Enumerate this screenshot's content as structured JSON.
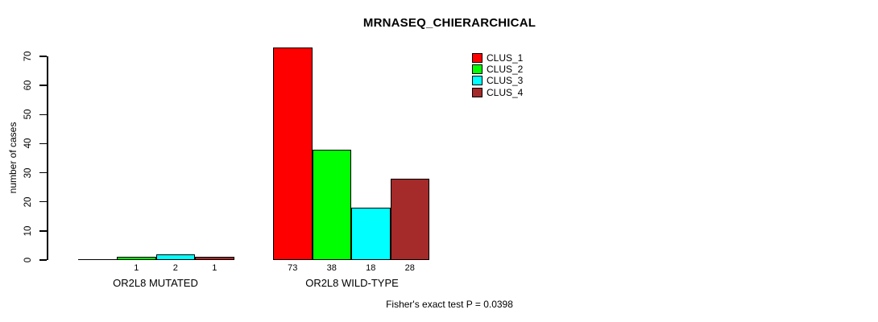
{
  "chart_data": {
    "type": "bar",
    "title": "MRNASEQ_CHIERARCHICAL",
    "ylabel": "number of cases",
    "ylim": [
      0,
      70
    ],
    "yticks": [
      0,
      10,
      20,
      30,
      40,
      50,
      60,
      70
    ],
    "categories": [
      "OR2L8 MUTATED",
      "OR2L8 WILD-TYPE"
    ],
    "series": [
      {
        "name": "CLUS_1",
        "color": "#FF0000",
        "values": [
          0,
          73
        ]
      },
      {
        "name": "CLUS_2",
        "color": "#00FF00",
        "values": [
          1,
          38
        ]
      },
      {
        "name": "CLUS_3",
        "color": "#00FFFF",
        "values": [
          2,
          18
        ]
      },
      {
        "name": "CLUS_4",
        "color": "#A52A2A",
        "values": [
          1,
          28
        ]
      }
    ],
    "show_value_labels": true,
    "hide_zero_value_labels": true,
    "visible_value_labels": [
      "1",
      "2",
      "1",
      "73",
      "38",
      "18",
      "28"
    ],
    "legend_position": "top-right",
    "legend_entries": [
      "CLUS_1",
      "CLUS_2",
      "CLUS_3",
      "CLUS_4"
    ],
    "caption": "Fisher's exact test P = 0.0398",
    "grid": false,
    "background": "#FFFFFF",
    "text_color": "#000000"
  }
}
